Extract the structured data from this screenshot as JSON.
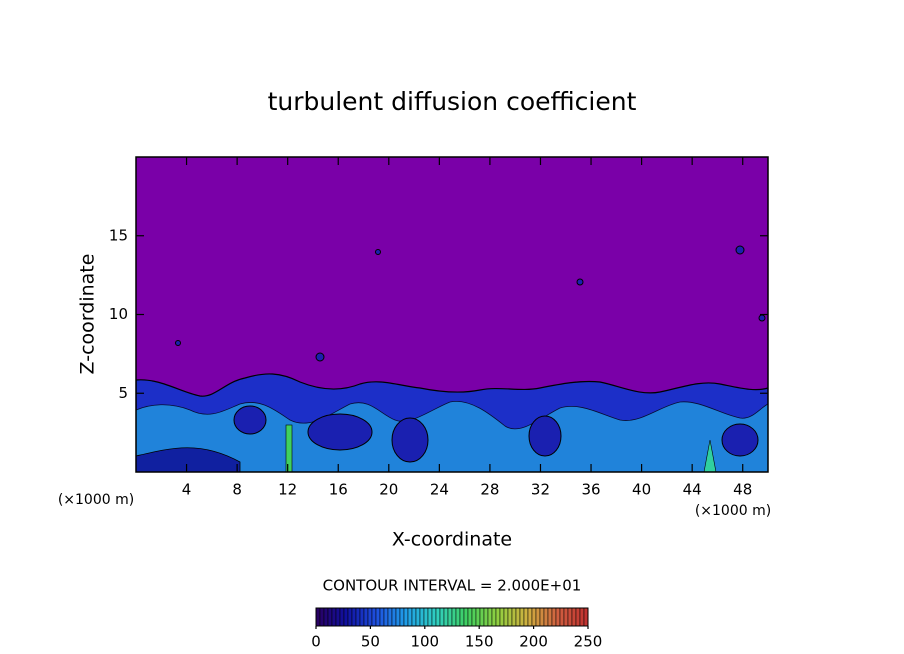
{
  "chart_data": {
    "type": "contour",
    "title": "turbulent diffusion coefficient",
    "x_label": "X-coordinate",
    "y_label": "Z-coordinate",
    "x_unit_left": "(×1000 m)",
    "x_unit_right": "(×1000 m)",
    "xlim": [
      0,
      50
    ],
    "xticks": [
      4,
      8,
      12,
      16,
      20,
      24,
      28,
      32,
      36,
      40,
      44,
      48
    ],
    "ylim": [
      0,
      20
    ],
    "yticks": [
      5,
      10,
      15
    ],
    "contour_interval_text": "CONTOUR INTERVAL = 2.000E+01",
    "colorbar": {
      "lim": [
        0,
        250
      ],
      "ticks": [
        0,
        50,
        100,
        150,
        200,
        250
      ],
      "colors": [
        "#2a0060",
        "#1010a0",
        "#1e50e0",
        "#20a0e8",
        "#30d0c0",
        "#40d060",
        "#90d040",
        "#d0b040",
        "#d06040",
        "#c03030"
      ]
    }
  }
}
